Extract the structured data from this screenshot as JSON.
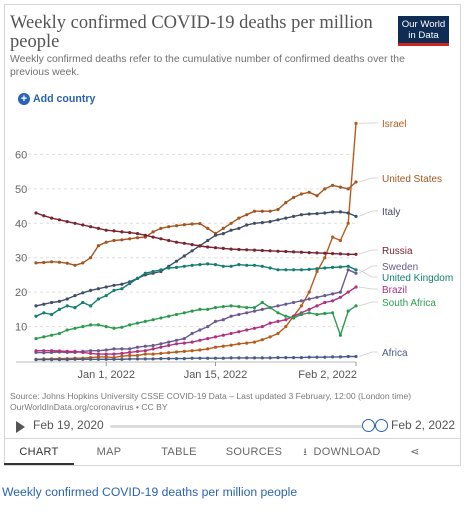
{
  "header": {
    "title": "Weekly confirmed COVID-19 deaths per million people",
    "subtitle": "Weekly confirmed deaths refer to the cumulative number of confirmed deaths over the previous week.",
    "logo_line1": "Our World",
    "logo_line2": "in Data"
  },
  "controls": {
    "add_country_label": "Add country",
    "plus_icon": "+"
  },
  "source": {
    "line1": "Source: Johns Hopkins University CSSE COVID-19 Data – Last updated 3 February, 12:00 (London time)",
    "line2": "OurWorldInData.org/coronavirus • CC BY"
  },
  "timeline": {
    "start_label": "Feb 19, 2020",
    "end_label": "Feb 2, 2022",
    "selected_fraction": [
      0.965,
      1.0
    ]
  },
  "tabs": {
    "chart": "CHART",
    "map": "MAP",
    "table": "TABLE",
    "sources": "SOURCES",
    "download": "DOWNLOAD",
    "download_icon": "⭳",
    "share_icon": "⋖"
  },
  "caption": "Weekly confirmed COVID-19 deaths per million people",
  "colors": {
    "Israel": "#b85c1c",
    "United States": "#a3561f",
    "Italy": "#3f4d66",
    "Russia": "#7a2331",
    "Sweden": "#6b5a8f",
    "United Kingdom": "#127f6f",
    "Brazil": "#b1317f",
    "South Africa": "#2b9c4f",
    "Africa": "#4a5c86"
  },
  "chart_data": {
    "type": "line",
    "title": "Weekly confirmed COVID-19 deaths per million people",
    "x_tick_labels": [
      "Jan 1, 2022",
      "Jan 15, 2022",
      "Feb 2, 2022"
    ],
    "y_tick_labels": [
      "10",
      "20",
      "30",
      "40",
      "50",
      "60"
    ],
    "y_ticks": [
      10,
      20,
      30,
      40,
      50,
      60
    ],
    "ylim": [
      0,
      70
    ],
    "grid": true,
    "legend": "right, labels at line ends",
    "x": [
      "2021-12-23",
      "2021-12-24",
      "2021-12-25",
      "2021-12-26",
      "2021-12-27",
      "2021-12-28",
      "2021-12-29",
      "2021-12-30",
      "2021-12-31",
      "2022-01-01",
      "2022-01-02",
      "2022-01-03",
      "2022-01-04",
      "2022-01-05",
      "2022-01-06",
      "2022-01-07",
      "2022-01-08",
      "2022-01-09",
      "2022-01-10",
      "2022-01-11",
      "2022-01-12",
      "2022-01-13",
      "2022-01-14",
      "2022-01-15",
      "2022-01-16",
      "2022-01-17",
      "2022-01-18",
      "2022-01-19",
      "2022-01-20",
      "2022-01-21",
      "2022-01-22",
      "2022-01-23",
      "2022-01-24",
      "2022-01-25",
      "2022-01-26",
      "2022-01-27",
      "2022-01-28",
      "2022-01-29",
      "2022-01-30",
      "2022-01-31",
      "2022-02-01",
      "2022-02-02"
    ],
    "series": [
      {
        "name": "Israel",
        "values": [
          0.5,
          0.6,
          0.6,
          0.7,
          0.7,
          0.8,
          0.8,
          1.0,
          1.2,
          1.2,
          1.0,
          1.4,
          1.6,
          1.6,
          2.0,
          2.0,
          2.2,
          2.4,
          2.6,
          2.8,
          3.0,
          3.2,
          3.5,
          4.0,
          4.3,
          4.6,
          5.0,
          5.2,
          5.5,
          6.2,
          7.0,
          8.0,
          10.0,
          13.0,
          16.0,
          20.0,
          26.0,
          30.0,
          36.0,
          35.0,
          40.0,
          69.0
        ]
      },
      {
        "name": "United States",
        "values": [
          28.5,
          28.6,
          28.8,
          28.7,
          28.4,
          27.8,
          28.5,
          30.0,
          33.5,
          34.5,
          35.0,
          35.2,
          35.5,
          35.8,
          36.0,
          37.5,
          38.5,
          39.0,
          39.3,
          39.6,
          39.8,
          39.9,
          38.5,
          37.0,
          38.5,
          40.0,
          41.5,
          42.5,
          43.5,
          43.5,
          43.5,
          44.0,
          46.0,
          47.5,
          48.5,
          49.0,
          48.0,
          50.0,
          51.0,
          50.5,
          50.0,
          52.0
        ]
      },
      {
        "name": "Italy",
        "values": [
          16.0,
          16.5,
          17.0,
          17.3,
          18.0,
          19.0,
          19.8,
          20.5,
          21.0,
          21.5,
          22.0,
          22.3,
          23.0,
          24.0,
          25.0,
          25.5,
          26.0,
          27.5,
          29.0,
          30.5,
          32.0,
          33.5,
          35.0,
          36.5,
          37.0,
          38.0,
          38.5,
          39.5,
          40.0,
          40.2,
          40.5,
          41.0,
          41.5,
          42.0,
          42.5,
          42.7,
          42.8,
          43.0,
          43.3,
          43.3,
          43.0,
          42.0
        ]
      },
      {
        "name": "Russia",
        "values": [
          43.0,
          42.2,
          41.5,
          41.0,
          40.5,
          40.0,
          39.5,
          39.0,
          38.5,
          38.0,
          37.8,
          37.5,
          37.3,
          37.0,
          36.5,
          36.0,
          35.5,
          35.0,
          34.5,
          34.2,
          33.8,
          33.4,
          33.1,
          32.9,
          32.7,
          32.5,
          32.4,
          32.3,
          32.2,
          32.1,
          32.0,
          31.9,
          31.8,
          31.7,
          31.6,
          31.5,
          31.4,
          31.3,
          31.2,
          31.1,
          31.0,
          31.0
        ]
      },
      {
        "name": "Sweden",
        "values": [
          2.5,
          2.4,
          2.5,
          2.6,
          2.5,
          2.5,
          2.8,
          3.0,
          3.0,
          3.2,
          3.5,
          3.5,
          3.5,
          4.0,
          4.3,
          4.5,
          5.0,
          5.5,
          6.0,
          6.5,
          8.0,
          9.0,
          10.0,
          11.5,
          12.0,
          13.0,
          13.5,
          14.0,
          14.5,
          15.0,
          15.5,
          16.0,
          16.5,
          17.0,
          17.5,
          18.0,
          18.5,
          19.0,
          19.5,
          20.0,
          26.5,
          25.5
        ]
      },
      {
        "name": "United Kingdom",
        "values": [
          13.0,
          14.0,
          13.5,
          15.0,
          16.0,
          15.5,
          17.0,
          16.0,
          18.0,
          19.0,
          20.5,
          21.0,
          22.5,
          24.0,
          25.5,
          26.0,
          26.5,
          27.0,
          27.2,
          27.5,
          27.8,
          28.0,
          28.2,
          28.0,
          27.5,
          27.5,
          28.0,
          27.8,
          27.8,
          27.5,
          27.0,
          26.5,
          26.5,
          26.5,
          26.5,
          26.6,
          26.8,
          27.0,
          27.2,
          27.3,
          27.5,
          26.5
        ]
      },
      {
        "name": "Brazil",
        "values": [
          3.0,
          3.0,
          3.0,
          2.9,
          2.8,
          2.8,
          2.5,
          2.2,
          2.0,
          2.0,
          2.0,
          2.2,
          2.5,
          2.8,
          3.0,
          3.5,
          4.0,
          4.5,
          5.0,
          5.2,
          5.5,
          6.0,
          6.5,
          7.0,
          7.5,
          8.0,
          8.5,
          9.0,
          9.5,
          10.0,
          11.0,
          11.5,
          12.0,
          13.0,
          14.0,
          15.0,
          16.0,
          17.0,
          17.5,
          18.5,
          20.0,
          21.5
        ]
      },
      {
        "name": "South Africa",
        "values": [
          6.5,
          7.0,
          7.5,
          8.0,
          9.0,
          9.5,
          10.0,
          10.5,
          10.5,
          10.0,
          9.5,
          9.8,
          10.5,
          11.0,
          11.5,
          12.0,
          12.5,
          13.0,
          13.5,
          14.0,
          14.5,
          15.0,
          15.0,
          15.5,
          15.8,
          16.0,
          15.8,
          15.5,
          15.5,
          17.0,
          15.5,
          14.0,
          13.0,
          12.5,
          13.5,
          14.0,
          13.5,
          13.8,
          14.0,
          7.5,
          14.5,
          16.0
        ]
      },
      {
        "name": "Africa",
        "values": [
          0.4,
          0.4,
          0.4,
          0.4,
          0.4,
          0.5,
          0.5,
          0.5,
          0.5,
          0.5,
          0.5,
          0.5,
          0.6,
          0.6,
          0.6,
          0.6,
          0.7,
          0.7,
          0.7,
          0.7,
          0.8,
          0.8,
          0.8,
          0.8,
          0.8,
          0.9,
          0.9,
          0.9,
          0.9,
          0.9,
          0.9,
          1.0,
          1.0,
          1.0,
          1.0,
          1.1,
          1.1,
          1.1,
          1.2,
          1.2,
          1.3,
          1.3
        ]
      }
    ],
    "label_order": [
      "Israel",
      "United States",
      "Italy",
      "Russia",
      "Sweden",
      "United Kingdom",
      "Brazil",
      "South Africa",
      "Africa"
    ]
  }
}
